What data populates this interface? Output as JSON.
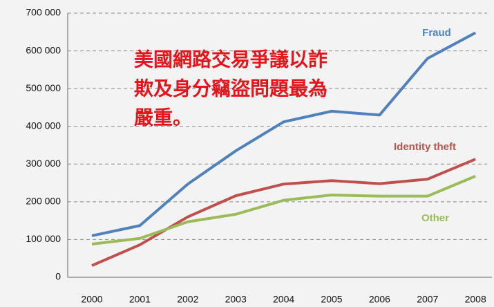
{
  "chart_data": {
    "type": "line",
    "annotation": [
      "美國網路交易爭議以詐",
      "欺及身分竊盜問題最為",
      "嚴重。"
    ],
    "categories": [
      "2000",
      "2001",
      "2002",
      "2003",
      "2004",
      "2005",
      "2006",
      "2007",
      "2008"
    ],
    "series": [
      {
        "name": "Fraud",
        "color": "#4f81bd",
        "values": [
          110000,
          137000,
          247000,
          335000,
          412000,
          440000,
          430000,
          580000,
          648000
        ]
      },
      {
        "name": "Identity theft",
        "color": "#c0504d",
        "values": [
          31000,
          86000,
          160000,
          216000,
          247000,
          256000,
          248000,
          260000,
          313000
        ]
      },
      {
        "name": "Other",
        "color": "#9bbb59",
        "values": [
          88000,
          103000,
          147000,
          167000,
          204000,
          218000,
          215000,
          215000,
          268000
        ]
      }
    ],
    "ylim": [
      0,
      700000
    ],
    "yticks": [
      0,
      {
        "value": 100000,
        "label": "100 000"
      },
      {
        "value": 200000,
        "label": "200 000"
      },
      {
        "value": 300000,
        "label": "300 000"
      },
      {
        "value": 400000,
        "label": "400 000"
      },
      {
        "value": 500000,
        "label": "500 000"
      },
      {
        "value": 600000,
        "label": "600 000"
      },
      {
        "value": 700000,
        "label": "700 000"
      }
    ],
    "grid": true
  }
}
